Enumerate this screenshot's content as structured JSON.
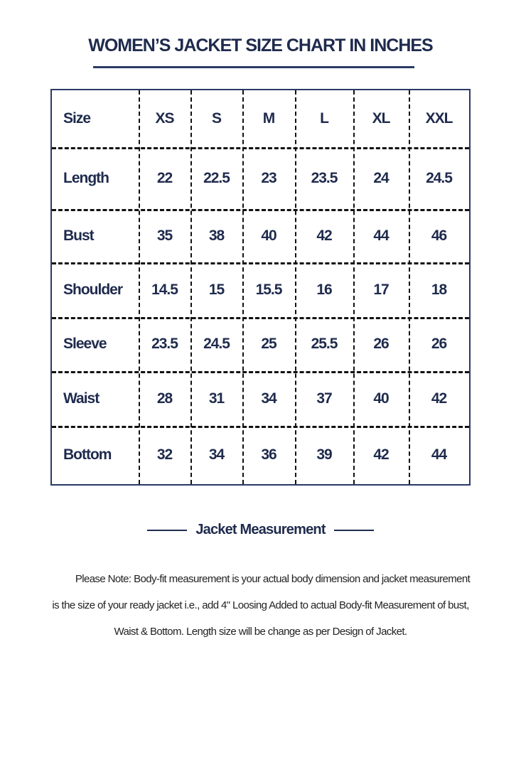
{
  "title": "WOMEN’S  JACKET SIZE CHART IN INCHES",
  "table": {
    "header": [
      "Size",
      "XS",
      "S",
      "M",
      "L",
      "XL",
      "XXL"
    ],
    "rows": [
      [
        "Length",
        "22",
        "22.5",
        "23",
        "23.5",
        "24",
        "24.5"
      ],
      [
        "Bust",
        "35",
        "38",
        "40",
        "42",
        "44",
        "46"
      ],
      [
        "Shoulder",
        "14.5",
        "15",
        "15.5",
        "16",
        "17",
        "18"
      ],
      [
        "Sleeve",
        "23.5",
        "24.5",
        "25",
        "25.5",
        "26",
        "26"
      ],
      [
        "Waist",
        "28",
        "31",
        "34",
        "37",
        "40",
        "42"
      ],
      [
        "Bottom",
        "32",
        "34",
        "36",
        "39",
        "42",
        "44"
      ]
    ]
  },
  "caption": "Jacket Measurement",
  "note_lines": [
    "Please Note: Body-fit measurement is your actual body dimension and jacket measurement",
    "is the size of your ready jacket i.e., add 4\" Loosing Added to actual Body-fit Measurement of bust,",
    "Waist & Bottom. Length size will be change as per Design of Jacket."
  ],
  "colors": {
    "text": "#1f2b4d",
    "border": "#2a3a66"
  }
}
